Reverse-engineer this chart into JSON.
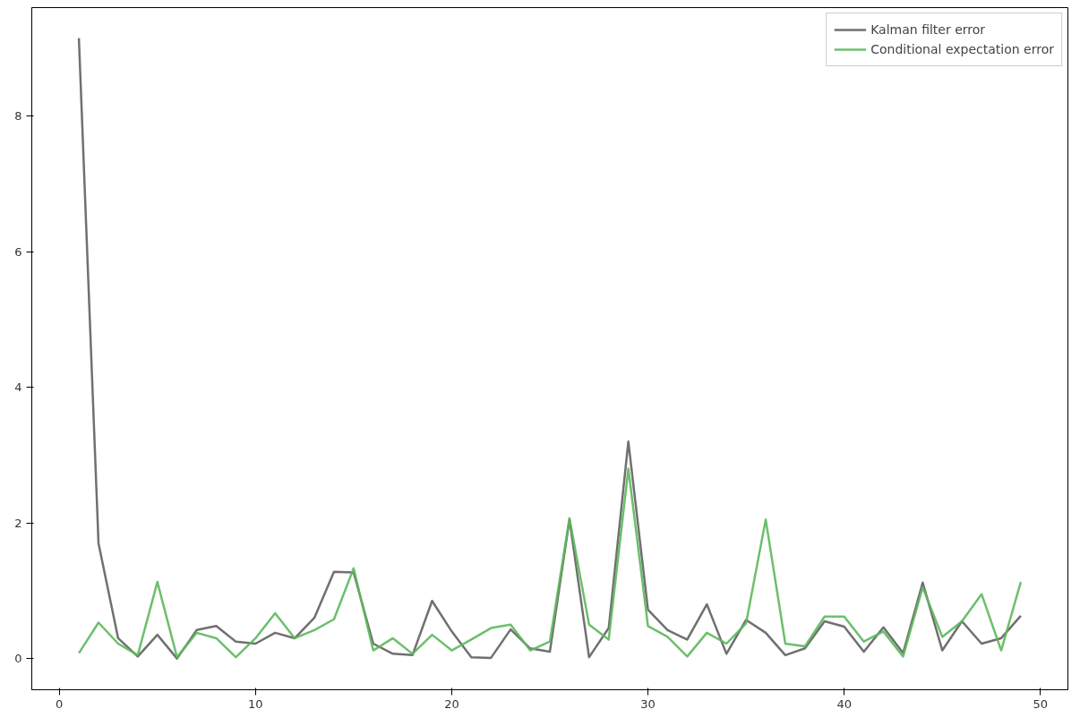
{
  "chart_data": {
    "type": "line",
    "x": [
      1,
      2,
      3,
      4,
      5,
      6,
      7,
      8,
      9,
      10,
      11,
      12,
      13,
      14,
      15,
      16,
      17,
      18,
      19,
      20,
      21,
      22,
      23,
      24,
      25,
      26,
      27,
      28,
      29,
      30,
      31,
      32,
      33,
      34,
      35,
      36,
      37,
      38,
      39,
      40,
      41,
      42,
      43,
      44,
      45,
      46,
      47,
      48,
      49
    ],
    "series": [
      {
        "name": "Kalman filter error",
        "color": "#606060",
        "values": [
          9.15,
          1.7,
          0.3,
          0.03,
          0.35,
          0.0,
          0.42,
          0.48,
          0.25,
          0.22,
          0.38,
          0.3,
          0.6,
          1.28,
          1.27,
          0.22,
          0.07,
          0.05,
          0.85,
          0.4,
          0.02,
          0.01,
          0.43,
          0.15,
          0.1,
          2.05,
          0.02,
          0.45,
          3.2,
          0.72,
          0.42,
          0.28,
          0.8,
          0.07,
          0.57,
          0.38,
          0.05,
          0.15,
          0.55,
          0.47,
          0.1,
          0.46,
          0.08,
          1.12,
          0.12,
          0.55,
          0.22,
          0.3,
          0.63
        ]
      },
      {
        "name": "Conditional expectation error",
        "color": "#5cb85c",
        "values": [
          0.08,
          0.53,
          0.22,
          0.05,
          1.13,
          0.02,
          0.38,
          0.3,
          0.02,
          0.3,
          0.67,
          0.3,
          0.42,
          0.58,
          1.33,
          0.12,
          0.3,
          0.07,
          0.35,
          0.12,
          0.28,
          0.45,
          0.5,
          0.12,
          0.25,
          2.07,
          0.5,
          0.28,
          2.8,
          0.48,
          0.32,
          0.03,
          0.38,
          0.22,
          0.52,
          2.05,
          0.22,
          0.18,
          0.62,
          0.62,
          0.25,
          0.4,
          0.03,
          1.05,
          0.32,
          0.55,
          0.95,
          0.12,
          1.13
        ]
      }
    ],
    "xlim": [
      -1.4,
      51.4
    ],
    "ylim": [
      -0.46,
      9.6
    ],
    "xticks": [
      0,
      10,
      20,
      30,
      40,
      50
    ],
    "yticks": [
      0,
      2,
      4,
      6,
      8
    ],
    "grid": false,
    "legend": "top right"
  }
}
